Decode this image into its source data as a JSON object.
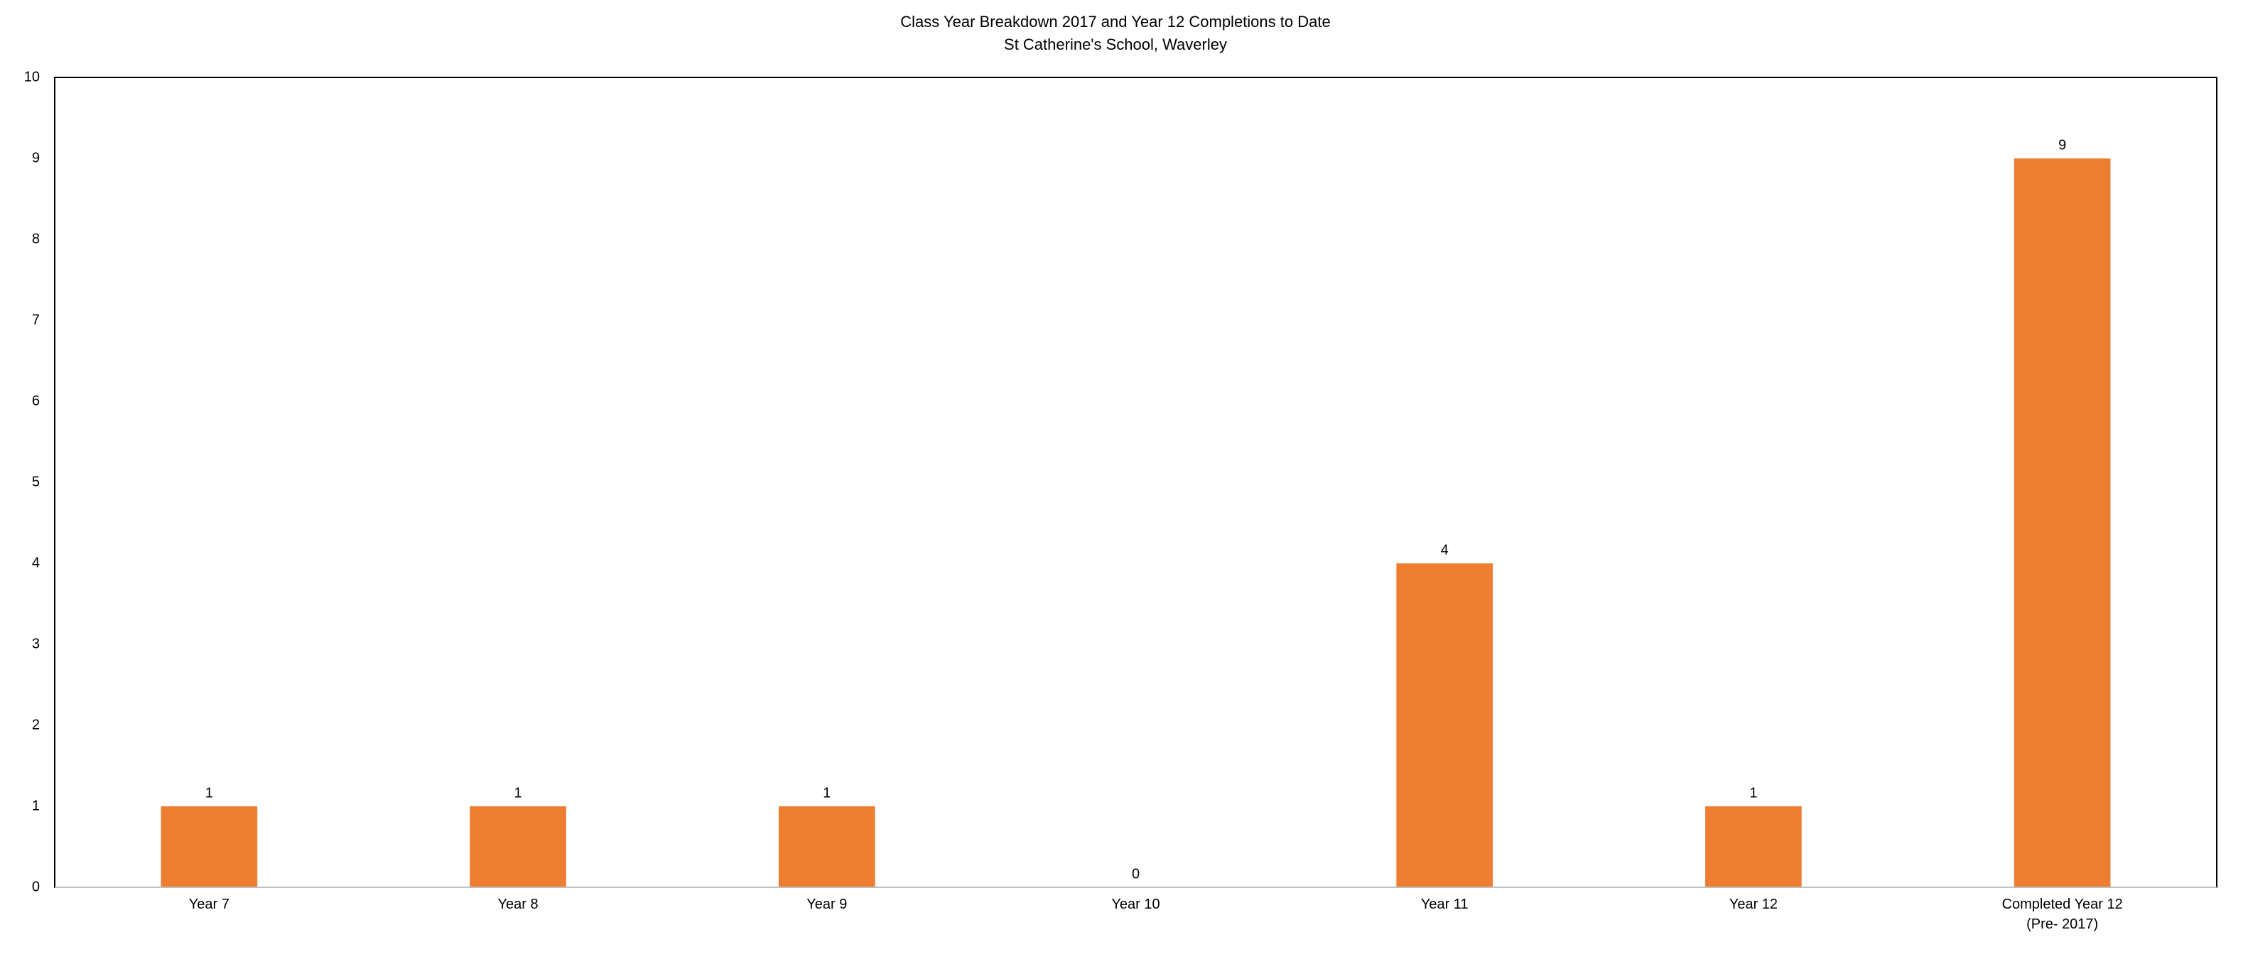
{
  "chart_data": {
    "type": "bar",
    "title": "Class Year Breakdown 2017 and Year 12 Completions to Date",
    "subtitle": "St Catherine's School, Waverley",
    "categories": [
      "Year 7",
      "Year 8",
      "Year 9",
      "Year 10",
      "Year 11",
      "Year 12",
      "Completed Year 12 (Pre- 2017)"
    ],
    "values": [
      1,
      1,
      1,
      0,
      4,
      1,
      9
    ],
    "color": "#ed7d31",
    "ylim": [
      0,
      10
    ],
    "yticks": [
      0,
      1,
      2,
      3,
      4,
      5,
      6,
      7,
      8,
      9,
      10
    ],
    "grid": false
  }
}
